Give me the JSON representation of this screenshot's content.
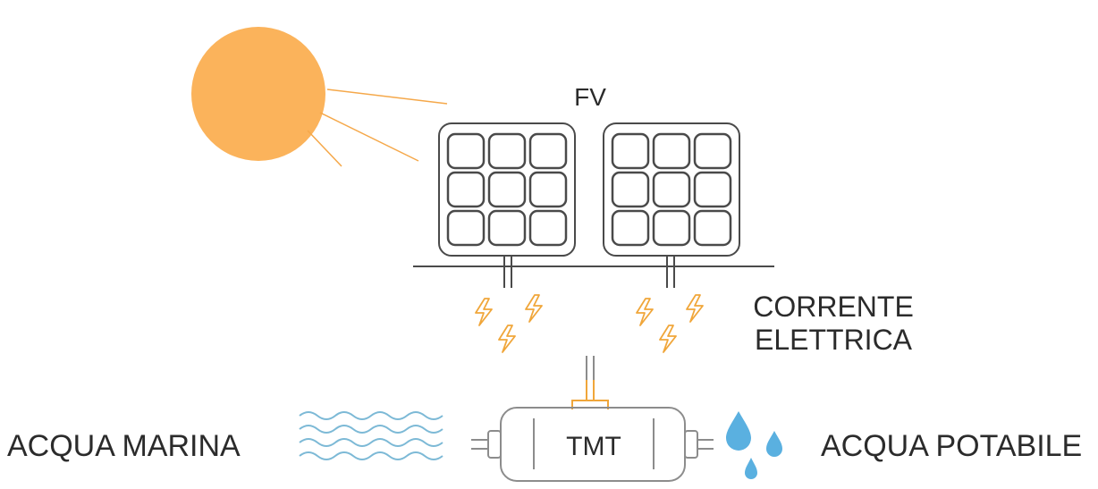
{
  "labels": {
    "fv": "FV",
    "current": [
      "CORRENTE",
      "ELETTRICA"
    ],
    "sea_water": "ACQUA MARINA",
    "device": "TMT",
    "drinking_water": "ACQUA POTABILE"
  }
}
